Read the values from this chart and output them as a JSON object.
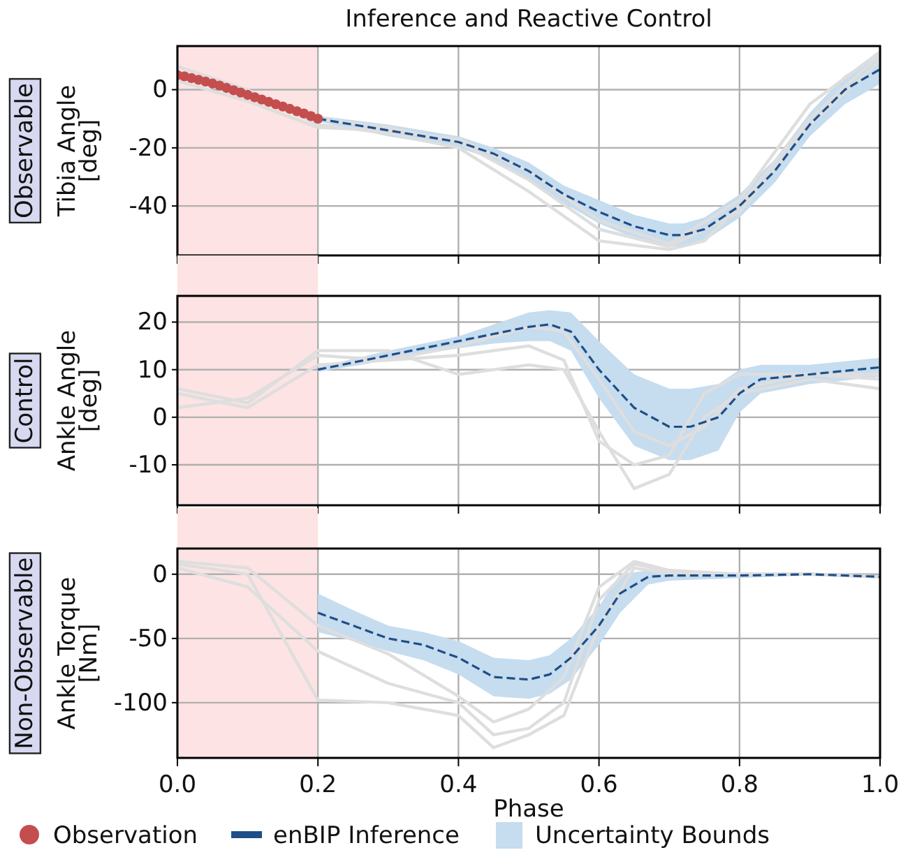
{
  "chart_data": [
    {
      "type": "line",
      "title": "Inference and Reactive Control",
      "ylabel": "Tibia Angle\n[deg]",
      "annotations": [
        "Observable",
        "Uncertainty Bounds"
      ],
      "xlim": [
        0,
        1
      ],
      "xticks": [
        0,
        0.2,
        0.4,
        0.6,
        0.8,
        1
      ],
      "ylim": [
        -57,
        15
      ],
      "yticks": [
        0,
        -20,
        -40
      ],
      "grid": true,
      "tick_labels": "y",
      "legend": "bottom",
      "bands": [
        {
          "axis": "x",
          "from": 0,
          "to": 0.2,
          "color": "#fde3e3"
        }
      ],
      "series": [
        {
          "color": "#dedede",
          "x": [
            0,
            0.1,
            0.2,
            0.3,
            0.4,
            0.5,
            0.6,
            0.7,
            0.75,
            0.8,
            0.9,
            1
          ],
          "values": [
            8,
            0,
            -12,
            -15,
            -20,
            -35,
            -52,
            -55,
            -52,
            -40,
            -10,
            12
          ]
        },
        {
          "color": "#dedede",
          "x": [
            0,
            0.1,
            0.2,
            0.3,
            0.4,
            0.5,
            0.6,
            0.7,
            0.8,
            0.9,
            1
          ],
          "values": [
            3,
            -4,
            -13,
            -14,
            -17,
            -28,
            -45,
            -53,
            -38,
            -5,
            13
          ]
        },
        {
          "color": "#dedede",
          "x": [
            0,
            0.1,
            0.2,
            0.3,
            0.4,
            0.5,
            0.6,
            0.7,
            0.8,
            0.9,
            1
          ],
          "values": [
            6,
            -1,
            -10,
            -13,
            -18,
            -31,
            -48,
            -54,
            -42,
            -12,
            10
          ]
        },
        {
          "type": "line",
          "name": "enBIP Inference",
          "color": "#1f4e87",
          "line_style": "dashed",
          "x": [
            0.2,
            0.3,
            0.4,
            0.45,
            0.5,
            0.55,
            0.6,
            0.65,
            0.7,
            0.72,
            0.75,
            0.8,
            0.85,
            0.9,
            0.95,
            1
          ],
          "values": [
            -10,
            -14,
            -18,
            -22,
            -28,
            -36,
            -42,
            -47,
            -50,
            -50,
            -48,
            -40,
            -28,
            -12,
            0,
            7
          ],
          "upper": [
            -9,
            -12,
            -16,
            -20,
            -25,
            -33,
            -38,
            -43,
            -46,
            -46,
            -44,
            -36,
            -24,
            -8,
            5,
            12
          ],
          "lower": [
            -11,
            -16,
            -20,
            -24,
            -31,
            -39,
            -46,
            -51,
            -54,
            -54,
            -52,
            -44,
            -32,
            -16,
            -5,
            2
          ]
        },
        {
          "type": "scatter",
          "name": "Observation",
          "color": "#c44e4e",
          "marker": "circle",
          "x": [
            0,
            0.01,
            0.02,
            0.03,
            0.04,
            0.05,
            0.06,
            0.07,
            0.08,
            0.09,
            0.1,
            0.11,
            0.12,
            0.13,
            0.14,
            0.15,
            0.16,
            0.17,
            0.18,
            0.19,
            0.2
          ],
          "values": [
            5,
            4.6,
            4,
            3.4,
            2.8,
            2.1,
            1.4,
            0.6,
            -0.2,
            -1,
            -1.8,
            -2.6,
            -3.4,
            -4.2,
            -5,
            -5.8,
            -6.6,
            -7.4,
            -8.2,
            -9.1,
            -10
          ]
        }
      ]
    },
    {
      "type": "line",
      "ylabel": "Ankle Angle\n[deg]",
      "annotations": [
        "Control"
      ],
      "xlim": [
        0,
        1
      ],
      "xticks": [
        0,
        0.2,
        0.4,
        0.6,
        0.8,
        1
      ],
      "ylim": [
        -18.5,
        25.5
      ],
      "yticks": [
        20,
        10,
        0,
        -10
      ],
      "grid": true,
      "tick_labels": "y",
      "bands": [
        {
          "axis": "x",
          "from": 0,
          "to": 0.2,
          "color": "#fde3e3"
        }
      ],
      "series": [
        {
          "color": "#dedede",
          "x": [
            0,
            0.1,
            0.2,
            0.3,
            0.4,
            0.5,
            0.55,
            0.6,
            0.65,
            0.7,
            0.75,
            0.8,
            0.9,
            1
          ],
          "values": [
            6,
            3,
            14,
            14,
            9,
            11,
            10,
            -3,
            -15,
            -12,
            0,
            5,
            8,
            6
          ]
        },
        {
          "color": "#dedede",
          "x": [
            0,
            0.1,
            0.2,
            0.3,
            0.4,
            0.5,
            0.55,
            0.6,
            0.65,
            0.7,
            0.75,
            0.8,
            0.9,
            1
          ],
          "values": [
            2,
            4,
            13,
            12,
            13,
            15,
            12,
            -5,
            -10,
            -8,
            5,
            9,
            9,
            8
          ]
        },
        {
          "color": "#dedede",
          "x": [
            0,
            0.1,
            0.2,
            0.3,
            0.4,
            0.5,
            0.55,
            0.6,
            0.65,
            0.7,
            0.75,
            0.8,
            0.9,
            1
          ],
          "values": [
            5,
            2,
            11,
            12,
            15,
            19,
            18,
            8,
            -3,
            -6,
            -2,
            6,
            9,
            9
          ]
        },
        {
          "type": "line",
          "color": "#1f4e87",
          "line_style": "dashed",
          "x": [
            0.2,
            0.3,
            0.4,
            0.45,
            0.5,
            0.53,
            0.56,
            0.6,
            0.65,
            0.7,
            0.73,
            0.77,
            0.8,
            0.83,
            0.9,
            1
          ],
          "values": [
            10,
            13,
            16,
            17.5,
            19,
            19.5,
            18,
            10,
            2,
            -2,
            -2,
            0,
            5,
            8,
            9,
            10.5
          ],
          "upper": [
            10.5,
            14,
            17,
            19.5,
            22,
            22.5,
            22,
            16,
            9,
            6,
            6,
            7,
            10,
            11,
            11,
            12.5
          ],
          "lower": [
            9.5,
            12,
            14.5,
            15.5,
            16,
            16,
            14,
            4,
            -6,
            -9,
            -9,
            -7,
            1,
            5,
            7,
            8.5
          ]
        }
      ]
    },
    {
      "type": "line",
      "ylabel": "Ankle Torque\n[Nm]",
      "xlabel": "Phase",
      "annotations": [
        "Non-Observable"
      ],
      "xlim": [
        0,
        1
      ],
      "xticks": [
        {
          "value": 0,
          "label": "0.0"
        },
        0.2,
        0.4,
        0.6,
        0.8,
        {
          "value": 1,
          "label": "1.0"
        }
      ],
      "ylim": [
        -143,
        20
      ],
      "yticks": [
        0,
        -50,
        -100
      ],
      "grid": true,
      "bands": [
        {
          "axis": "x",
          "from": 0,
          "to": 0.2,
          "color": "#fde3e3"
        }
      ],
      "series": [
        {
          "color": "#dedede",
          "x": [
            0,
            0.1,
            0.2,
            0.3,
            0.4,
            0.45,
            0.5,
            0.55,
            0.6,
            0.65,
            0.7,
            0.8,
            0.9,
            1
          ],
          "values": [
            8,
            0,
            -98,
            -100,
            -110,
            -135,
            -125,
            -110,
            -40,
            5,
            0,
            0,
            0,
            -2
          ]
        },
        {
          "color": "#dedede",
          "x": [
            0,
            0.1,
            0.2,
            0.3,
            0.4,
            0.45,
            0.5,
            0.55,
            0.6,
            0.65,
            0.7,
            0.8,
            0.9,
            1
          ],
          "values": [
            5,
            -10,
            -60,
            -85,
            -100,
            -125,
            -120,
            -100,
            -20,
            8,
            2,
            0,
            0,
            -2
          ]
        },
        {
          "color": "#dedede",
          "x": [
            0,
            0.1,
            0.2,
            0.3,
            0.4,
            0.45,
            0.5,
            0.55,
            0.6,
            0.65,
            0.7,
            0.8,
            0.9,
            1
          ],
          "values": [
            10,
            5,
            -40,
            -62,
            -95,
            -115,
            -105,
            -80,
            -10,
            10,
            3,
            0,
            0,
            -2
          ]
        },
        {
          "type": "line",
          "color": "#1f4e87",
          "line_style": "dashed",
          "x": [
            0.2,
            0.25,
            0.3,
            0.35,
            0.4,
            0.45,
            0.5,
            0.53,
            0.56,
            0.6,
            0.63,
            0.67,
            0.7,
            0.8,
            0.9,
            1
          ],
          "values": [
            -30,
            -40,
            -50,
            -55,
            -65,
            -80,
            -82,
            -78,
            -65,
            -40,
            -15,
            -2,
            -1,
            -1,
            0,
            -2
          ],
          "upper": [
            -15,
            -28,
            -40,
            -45,
            -52,
            -65,
            -67,
            -63,
            -50,
            -25,
            0,
            3,
            2,
            1,
            1,
            -1
          ],
          "lower": [
            -45,
            -52,
            -60,
            -67,
            -78,
            -95,
            -97,
            -93,
            -82,
            -55,
            -30,
            -8,
            -5,
            -3,
            -1,
            -3
          ]
        }
      ]
    }
  ]
}
